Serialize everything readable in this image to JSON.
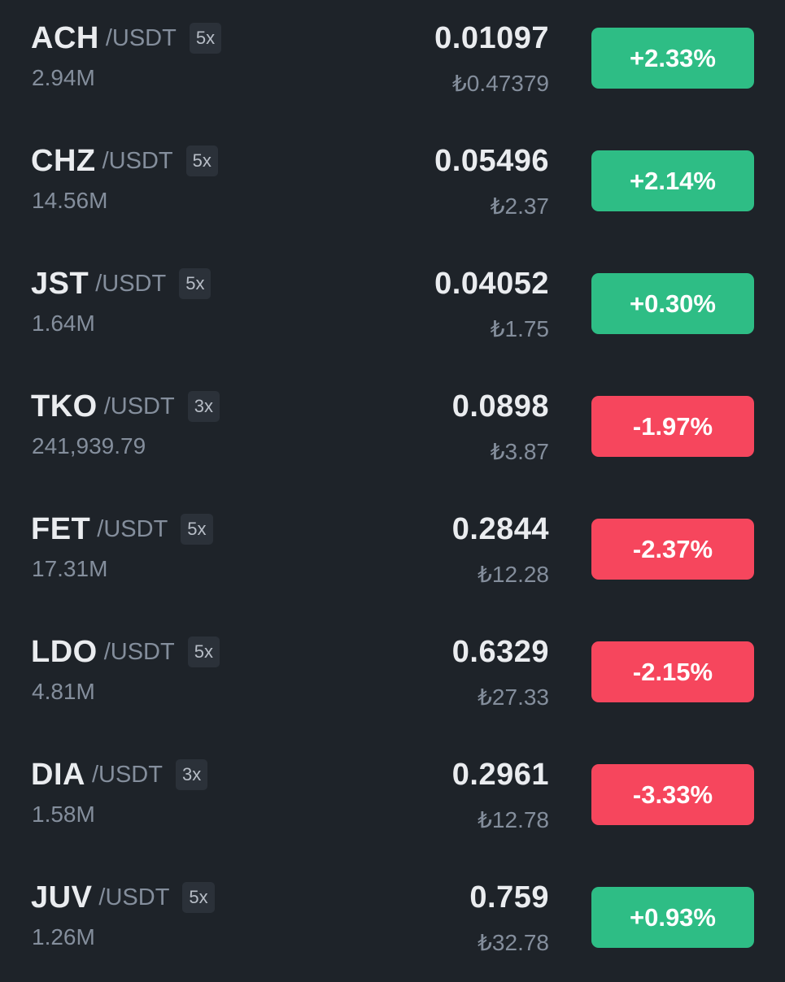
{
  "colors": {
    "background": "#1e2329",
    "positive": "#2ebd85",
    "negative": "#f6465d",
    "text_primary": "#eaecef",
    "text_secondary": "#848e9c",
    "leverage_bg": "#2b3139"
  },
  "markets": [
    {
      "symbol": "ACH",
      "quote": "/USDT",
      "leverage": "5x",
      "volume": "2.94M",
      "price": "0.01097",
      "local_price": "₺0.47379",
      "change": "+2.33%",
      "direction": "up"
    },
    {
      "symbol": "CHZ",
      "quote": "/USDT",
      "leverage": "5x",
      "volume": "14.56M",
      "price": "0.05496",
      "local_price": "₺2.37",
      "change": "+2.14%",
      "direction": "up"
    },
    {
      "symbol": "JST",
      "quote": "/USDT",
      "leverage": "5x",
      "volume": "1.64M",
      "price": "0.04052",
      "local_price": "₺1.75",
      "change": "+0.30%",
      "direction": "up"
    },
    {
      "symbol": "TKO",
      "quote": "/USDT",
      "leverage": "3x",
      "volume": "241,939.79",
      "price": "0.0898",
      "local_price": "₺3.87",
      "change": "-1.97%",
      "direction": "down"
    },
    {
      "symbol": "FET",
      "quote": "/USDT",
      "leverage": "5x",
      "volume": "17.31M",
      "price": "0.2844",
      "local_price": "₺12.28",
      "change": "-2.37%",
      "direction": "down"
    },
    {
      "symbol": "LDO",
      "quote": "/USDT",
      "leverage": "5x",
      "volume": "4.81M",
      "price": "0.6329",
      "local_price": "₺27.33",
      "change": "-2.15%",
      "direction": "down"
    },
    {
      "symbol": "DIA",
      "quote": "/USDT",
      "leverage": "3x",
      "volume": "1.58M",
      "price": "0.2961",
      "local_price": "₺12.78",
      "change": "-3.33%",
      "direction": "down"
    },
    {
      "symbol": "JUV",
      "quote": "/USDT",
      "leverage": "5x",
      "volume": "1.26M",
      "price": "0.759",
      "local_price": "₺32.78",
      "change": "+0.93%",
      "direction": "up"
    }
  ]
}
